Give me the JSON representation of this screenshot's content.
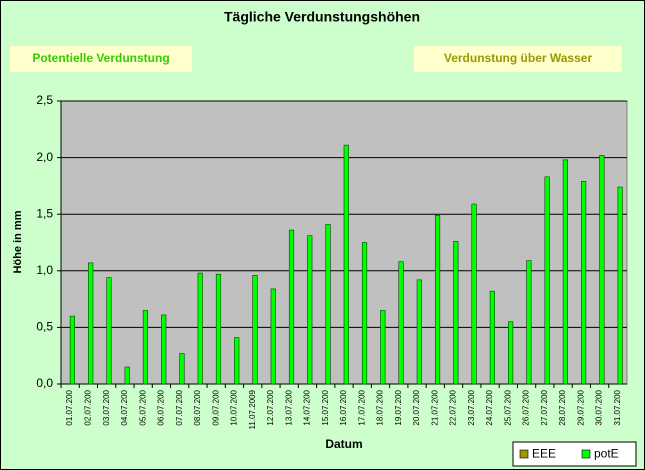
{
  "chart_data": {
    "type": "bar",
    "title": "Tägliche Verdunstungshöhen",
    "annotations": [
      "Potentielle Verdunstung",
      "Verdunstung über Wasser"
    ],
    "y_label": "Höhe in mm",
    "x_label": "Datum",
    "categories": [
      "01.07.200",
      "02.07.200",
      "03.07.200",
      "04.07.200",
      "05.07.200",
      "06.07.200",
      "07.07.200",
      "08.07.200",
      "09.07.200",
      "10.07.200",
      "11.07.2009",
      "12.07.200",
      "13.07.200",
      "14.07.200",
      "15.07.200",
      "16.07.200",
      "17.07.200",
      "18.07.200",
      "19.07.200",
      "20.07.200",
      "21.07.200",
      "22.07.200",
      "23.07.200",
      "24.07.200",
      "25.07.200",
      "26.07.200",
      "27.07.200",
      "28.07.200",
      "29.07.200",
      "30.07.200",
      "31.07.200"
    ],
    "series": [
      {
        "name": "EEE",
        "color": "#999900",
        "values": [
          null,
          null,
          null,
          null,
          null,
          null,
          null,
          null,
          null,
          null,
          null,
          null,
          null,
          null,
          null,
          null,
          null,
          null,
          null,
          null,
          null,
          null,
          null,
          null,
          null,
          null,
          null,
          null,
          null,
          null,
          null
        ]
      },
      {
        "name": "potE",
        "color": "#00ff00",
        "values": [
          0.6,
          1.07,
          0.94,
          0.15,
          0.65,
          0.61,
          0.27,
          0.98,
          0.97,
          0.41,
          0.96,
          0.84,
          1.36,
          1.31,
          1.41,
          2.11,
          1.25,
          0.65,
          1.08,
          0.92,
          1.49,
          1.26,
          1.59,
          0.82,
          0.55,
          1.09,
          1.83,
          1.98,
          1.79,
          2.02,
          1.74
        ]
      }
    ],
    "ylim": [
      0,
      2.5
    ],
    "yticks": [
      {
        "value": 0,
        "label": "0,0"
      },
      {
        "value": 0.5,
        "label": "0,5"
      },
      {
        "value": 1,
        "label": "1,0"
      },
      {
        "value": 1.5,
        "label": "1,5"
      },
      {
        "value": 2,
        "label": "2,0"
      },
      {
        "value": 2.5,
        "label": "2,5"
      }
    ],
    "grid": true,
    "legend": "bottom-right"
  }
}
